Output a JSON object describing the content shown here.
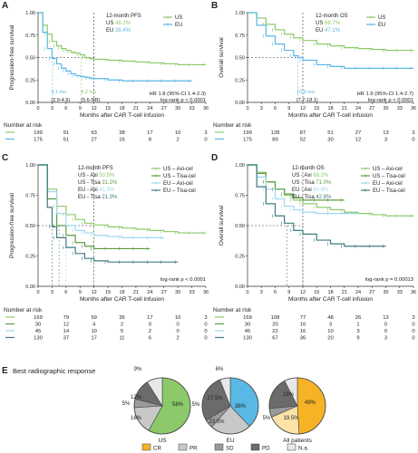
{
  "colors": {
    "us": "#8cc96a",
    "eu": "#5ab8e4",
    "us_axi": "#8cc96a",
    "us_tisa": "#5f9b45",
    "eu_axi": "#9fd7f0",
    "eu_tisa": "#3e7c82",
    "cr": "#8cc96a",
    "pr": "#c8c8c8",
    "sd": "#9a9a9a",
    "pd": "#6b6b6b",
    "na": "#e8e8e8",
    "eu_cr": "#5ab8e4",
    "all_cr": "#f5b325",
    "all_pr": "#fbe3a8"
  },
  "xaxis": {
    "label": "Months after CAR T-cell infusion",
    "ticks": [
      "0",
      "3",
      "6",
      "9",
      "12",
      "15",
      "18",
      "21",
      "24",
      "27",
      "30",
      "33",
      "36"
    ]
  },
  "yaxis_ticks": [
    "0.00",
    "0.25",
    "0.50",
    "0.75",
    "1.00"
  ],
  "number_at_risk_label": "Number at risk",
  "chart_data": [
    {
      "panel": "A",
      "type": "line",
      "ylabel": "Progression-free survival",
      "xlim": [
        0,
        36
      ],
      "ylim": [
        0,
        1
      ],
      "legend": [
        "US",
        "EU"
      ],
      "annotation_title": "12-month PFS",
      "annotation_lines": [
        {
          "label": "US",
          "value": "48.2%"
        },
        {
          "label": "EU",
          "value": "26.4%"
        }
      ],
      "median_labels": [
        "3.1 mo",
        "9.2 mo",
        "(2.9-4.9)",
        "(5.6-NR)"
      ],
      "hr_text": "HR 1.8 (95%-CI 1.4-2.3)",
      "logrank_text": "log-rank p < 0.0001",
      "series": [
        {
          "name": "US",
          "x": [
            0,
            1,
            2,
            3,
            4,
            5,
            6,
            7,
            8,
            9,
            10,
            11,
            12,
            15,
            18,
            21,
            24,
            27,
            30,
            33,
            36
          ],
          "y": [
            1.0,
            0.86,
            0.76,
            0.68,
            0.63,
            0.6,
            0.58,
            0.56,
            0.55,
            0.53,
            0.5,
            0.49,
            0.48,
            0.47,
            0.46,
            0.45,
            0.44,
            0.43,
            0.42,
            0.42,
            0.42
          ]
        },
        {
          "name": "EU",
          "x": [
            0,
            1,
            2,
            3,
            4,
            5,
            6,
            7,
            8,
            9,
            10,
            11,
            12,
            15,
            18,
            21,
            24,
            27,
            30,
            33
          ],
          "y": [
            1.0,
            0.78,
            0.6,
            0.49,
            0.43,
            0.38,
            0.35,
            0.32,
            0.3,
            0.29,
            0.28,
            0.27,
            0.265,
            0.25,
            0.24,
            0.24,
            0.24,
            0.24,
            0.24,
            0.24
          ]
        }
      ],
      "at_risk": {
        "x": [
          0,
          6,
          12,
          18,
          24,
          30,
          36
        ],
        "rows": [
          {
            "values": [
              "199",
              "91",
              "63",
              "38",
              "17",
              "10",
              "3"
            ]
          },
          {
            "values": [
              "175",
              "51",
              "27",
              "16",
              "8",
              "2",
              "0"
            ]
          }
        ]
      }
    },
    {
      "panel": "B",
      "type": "line",
      "ylabel": "Overall survival",
      "xlim": [
        0,
        36
      ],
      "ylim": [
        0,
        1
      ],
      "legend": [
        "US",
        "EU"
      ],
      "annotation_title": "12-month OS",
      "annotation_lines": [
        {
          "label": "US",
          "value": "68.7%"
        },
        {
          "label": "EU",
          "value": "47.1%"
        }
      ],
      "median_labels": [
        "10.9 mo",
        "(7.7-18.1)"
      ],
      "hr_text": "HR 1.9 (95%-CI 1.4-2.7)",
      "logrank_text": "log-rank p < 0.0001",
      "series": [
        {
          "name": "US",
          "x": [
            0,
            2,
            4,
            6,
            8,
            10,
            12,
            15,
            18,
            21,
            24,
            27,
            30,
            33,
            36
          ],
          "y": [
            1.0,
            0.94,
            0.87,
            0.81,
            0.76,
            0.72,
            0.69,
            0.65,
            0.63,
            0.61,
            0.6,
            0.59,
            0.58,
            0.58,
            0.58
          ]
        },
        {
          "name": "EU",
          "x": [
            0,
            2,
            4,
            6,
            8,
            10,
            11,
            12,
            15,
            18,
            21,
            24,
            27,
            30,
            33,
            36
          ],
          "y": [
            1.0,
            0.86,
            0.74,
            0.65,
            0.58,
            0.52,
            0.5,
            0.47,
            0.42,
            0.4,
            0.38,
            0.38,
            0.38,
            0.38,
            0.38,
            0.38
          ]
        }
      ],
      "at_risk": {
        "x": [
          0,
          6,
          12,
          18,
          24,
          30,
          36
        ],
        "rows": [
          {
            "values": [
              "199",
              "128",
              "87",
              "51",
              "27",
              "13",
              "3"
            ]
          },
          {
            "values": [
              "175",
              "89",
              "52",
              "30",
              "12",
              "3",
              "0"
            ]
          }
        ]
      }
    },
    {
      "panel": "C",
      "type": "line",
      "ylabel": "Progression-free survival",
      "xlim": [
        0,
        36
      ],
      "ylim": [
        0,
        1
      ],
      "legend": [
        "US – Axi-cel",
        "US – Tisa-cel",
        "EU – Axi-cel",
        "EU – Tisa-cel"
      ],
      "annotation_title": "12-month PFS",
      "annotation_lines": [
        {
          "label": "US - Axi",
          "value": "50.5%"
        },
        {
          "label": "US - Tisa",
          "value": "31.2%"
        },
        {
          "label": "EU - Axi",
          "value": "41.9%"
        },
        {
          "label": "EU - Tisa",
          "value": "21.3%"
        }
      ],
      "logrank_text": "log-rank p < 0.0001",
      "series": [
        {
          "name": "US – Axi-cel",
          "x": [
            0,
            2,
            4,
            6,
            8,
            10,
            12,
            15,
            18,
            21,
            24,
            27,
            30,
            33,
            36
          ],
          "y": [
            1.0,
            0.8,
            0.66,
            0.59,
            0.55,
            0.52,
            0.505,
            0.49,
            0.48,
            0.47,
            0.46,
            0.45,
            0.44,
            0.44,
            0.44
          ]
        },
        {
          "name": "US – Tisa-cel",
          "x": [
            0,
            2,
            4,
            6,
            8,
            10,
            12,
            15,
            18,
            21,
            24
          ],
          "y": [
            1.0,
            0.72,
            0.5,
            0.42,
            0.36,
            0.33,
            0.31,
            0.31,
            0.31,
            0.31,
            0.31
          ]
        },
        {
          "name": "EU – Axi-cel",
          "x": [
            0,
            2,
            4,
            6,
            8,
            10,
            12,
            15,
            18,
            21,
            24,
            27
          ],
          "y": [
            1.0,
            0.78,
            0.6,
            0.5,
            0.46,
            0.44,
            0.42,
            0.41,
            0.4,
            0.4,
            0.4,
            0.4
          ]
        },
        {
          "name": "EU – Tisa-cel",
          "x": [
            0,
            2,
            3,
            4,
            6,
            8,
            10,
            12,
            15,
            18,
            21,
            24,
            27,
            30
          ],
          "y": [
            1.0,
            0.65,
            0.49,
            0.4,
            0.32,
            0.27,
            0.23,
            0.21,
            0.2,
            0.2,
            0.2,
            0.2,
            0.2,
            0.2
          ]
        }
      ],
      "at_risk": {
        "x": [
          0,
          6,
          12,
          18,
          24,
          30,
          36
        ],
        "rows": [
          {
            "values": [
              "169",
              "79",
              "59",
              "36",
              "17",
              "10",
              "3"
            ]
          },
          {
            "values": [
              "30",
              "12",
              "4",
              "2",
              "0",
              "0",
              "0"
            ]
          },
          {
            "values": [
              "45",
              "14",
              "10",
              "5",
              "2",
              "0",
              "0"
            ]
          },
          {
            "values": [
              "130",
              "37",
              "17",
              "11",
              "6",
              "2",
              "0"
            ]
          }
        ]
      }
    },
    {
      "panel": "D",
      "type": "line",
      "ylabel": "Overall survival",
      "xlim": [
        0,
        36
      ],
      "ylim": [
        0,
        1
      ],
      "legend": [
        "US – Axi-cel",
        "US – Tisa-cel",
        "EU – Axi-cel",
        "EU – Tisa-cel"
      ],
      "annotation_title": "12-month OS",
      "annotation_lines": [
        {
          "label": "US - Axi",
          "value": "68.2%"
        },
        {
          "label": "US - Tisa",
          "value": "71.0%"
        },
        {
          "label": "EU - Axi",
          "value": "60.8%"
        },
        {
          "label": "EU - Tisa",
          "value": "42.8%"
        }
      ],
      "logrank_text": "log-rank p = 0.00013",
      "series": [
        {
          "name": "US – Axi-cel",
          "x": [
            0,
            2,
            4,
            6,
            8,
            10,
            12,
            15,
            18,
            21,
            24,
            27,
            30,
            33,
            36
          ],
          "y": [
            1.0,
            0.94,
            0.86,
            0.8,
            0.75,
            0.71,
            0.68,
            0.65,
            0.63,
            0.61,
            0.6,
            0.59,
            0.58,
            0.58,
            0.58
          ]
        },
        {
          "name": "US – Tisa-cel",
          "x": [
            0,
            2,
            4,
            6,
            8,
            10,
            12,
            15,
            18,
            21
          ],
          "y": [
            1.0,
            0.93,
            0.86,
            0.8,
            0.76,
            0.73,
            0.71,
            0.71,
            0.71,
            0.71
          ]
        },
        {
          "name": "EU – Axi-cel",
          "x": [
            0,
            2,
            4,
            6,
            8,
            10,
            12,
            15,
            18,
            21,
            24
          ],
          "y": [
            1.0,
            0.9,
            0.8,
            0.72,
            0.66,
            0.63,
            0.61,
            0.6,
            0.6,
            0.6,
            0.6
          ]
        },
        {
          "name": "EU – Tisa-cel",
          "x": [
            0,
            2,
            4,
            6,
            8,
            10,
            12,
            15,
            18,
            21,
            24,
            27,
            30
          ],
          "y": [
            1.0,
            0.82,
            0.68,
            0.58,
            0.52,
            0.46,
            0.43,
            0.38,
            0.35,
            0.33,
            0.33,
            0.33,
            0.33
          ]
        }
      ],
      "at_risk": {
        "x": [
          0,
          6,
          12,
          18,
          24,
          30,
          36
        ],
        "rows": [
          {
            "values": [
              "169",
              "108",
              "77",
              "48",
              "26",
              "13",
              "3"
            ]
          },
          {
            "values": [
              "30",
              "20",
              "10",
              "3",
              "1",
              "0",
              "0"
            ]
          },
          {
            "values": [
              "45",
              "22",
              "16",
              "10",
              "3",
              "0",
              "0"
            ]
          },
          {
            "values": [
              "130",
              "67",
              "36",
              "20",
              "9",
              "3",
              "0"
            ]
          }
        ]
      }
    },
    {
      "panel": "E",
      "type": "pie",
      "title": "Best radiographic response",
      "legend": [
        "CR",
        "PR",
        "SD",
        "PD",
        "N.a."
      ],
      "pies": [
        {
          "label": "US",
          "slices": [
            {
              "name": "CR",
              "value": 58,
              "text": "58%"
            },
            {
              "name": "PR",
              "value": 16,
              "text": "16%"
            },
            {
              "name": "SD",
              "value": 5,
              "text": "5%"
            },
            {
              "name": "PD",
              "value": 12,
              "text": "12%"
            },
            {
              "name": "N.a.",
              "value": 9,
              "text": "9%"
            }
          ]
        },
        {
          "label": "EU",
          "slices": [
            {
              "name": "CR",
              "value": 38,
              "text": "38%"
            },
            {
              "name": "PR",
              "value": 23.5,
              "text": "23.5%"
            },
            {
              "name": "SD",
              "value": 5,
              "text": "5%"
            },
            {
              "name": "PD",
              "value": 27.5,
              "text": "27.5%"
            },
            {
              "name": "N.a.",
              "value": 6,
              "text": "6%"
            }
          ]
        },
        {
          "label": "All patients",
          "slices": [
            {
              "name": "CR",
              "value": 49,
              "text": "49%"
            },
            {
              "name": "PR",
              "value": 19.5,
              "text": "19.5%"
            },
            {
              "name": "SD",
              "value": 5,
              "text": "5%"
            },
            {
              "name": "PD",
              "value": 19,
              "text": "19%"
            },
            {
              "name": "N.a.",
              "value": 7.5,
              "text": ""
            }
          ]
        }
      ]
    }
  ]
}
